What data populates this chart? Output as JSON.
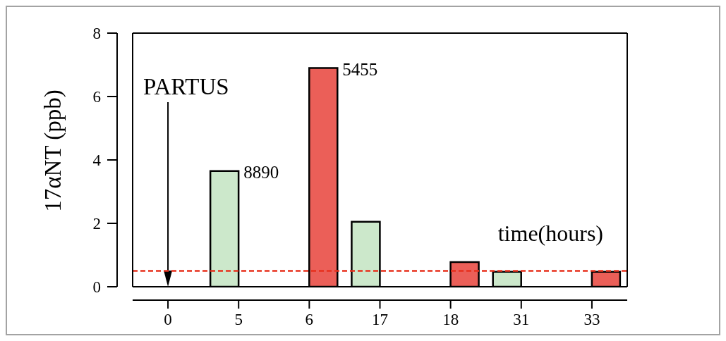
{
  "chart_data": {
    "type": "bar",
    "xlabel": "time(hours)",
    "ylabel": "17αNT (ppb)",
    "categories": [
      "0",
      "5",
      "6",
      "17",
      "18",
      "31",
      "33"
    ],
    "series": [
      {
        "color": "#cce8cb",
        "values": [
          null,
          3.65,
          null,
          2.05,
          null,
          0.47,
          null
        ]
      },
      {
        "color": "#eb5f58",
        "values": [
          null,
          null,
          6.9,
          null,
          0.78,
          null,
          0.47
        ]
      }
    ],
    "ylim": [
      0,
      8
    ],
    "yticks": [
      0,
      2,
      4,
      6,
      8
    ],
    "ref_lines": [
      {
        "axis": "x",
        "value": "0",
        "label": "PARTUS",
        "color": "#000000",
        "line_style": "solid"
      },
      {
        "axis": "y",
        "value": 0.5,
        "color": "#e8301c",
        "line_style": "dashed"
      }
    ],
    "annotations": [
      {
        "text": "8890",
        "x": "5",
        "y": 3.65
      },
      {
        "text": "5455",
        "x": "6",
        "y": 6.9
      }
    ]
  }
}
